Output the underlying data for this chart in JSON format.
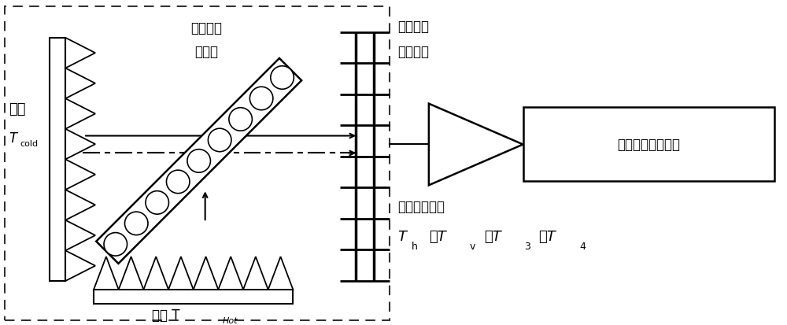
{
  "bg_color": "#ffffff",
  "line_color": "#000000",
  "cold_label": "冷源",
  "cold_temp_T": "T",
  "cold_temp_sub": "cold",
  "hot_label": "热源 T",
  "hot_sub": "Hot",
  "grid_label1": "可旋转极",
  "grid_label2": "化网格",
  "phase_label1": "可旋转相",
  "phase_label2": "位延迟板",
  "radiometer_label": "全极化微波辐射计",
  "brightness_label": "亮度温度输出",
  "output_T": "T",
  "output_subs": [
    "h",
    "v",
    "3",
    "4"
  ],
  "output_sep": "，"
}
